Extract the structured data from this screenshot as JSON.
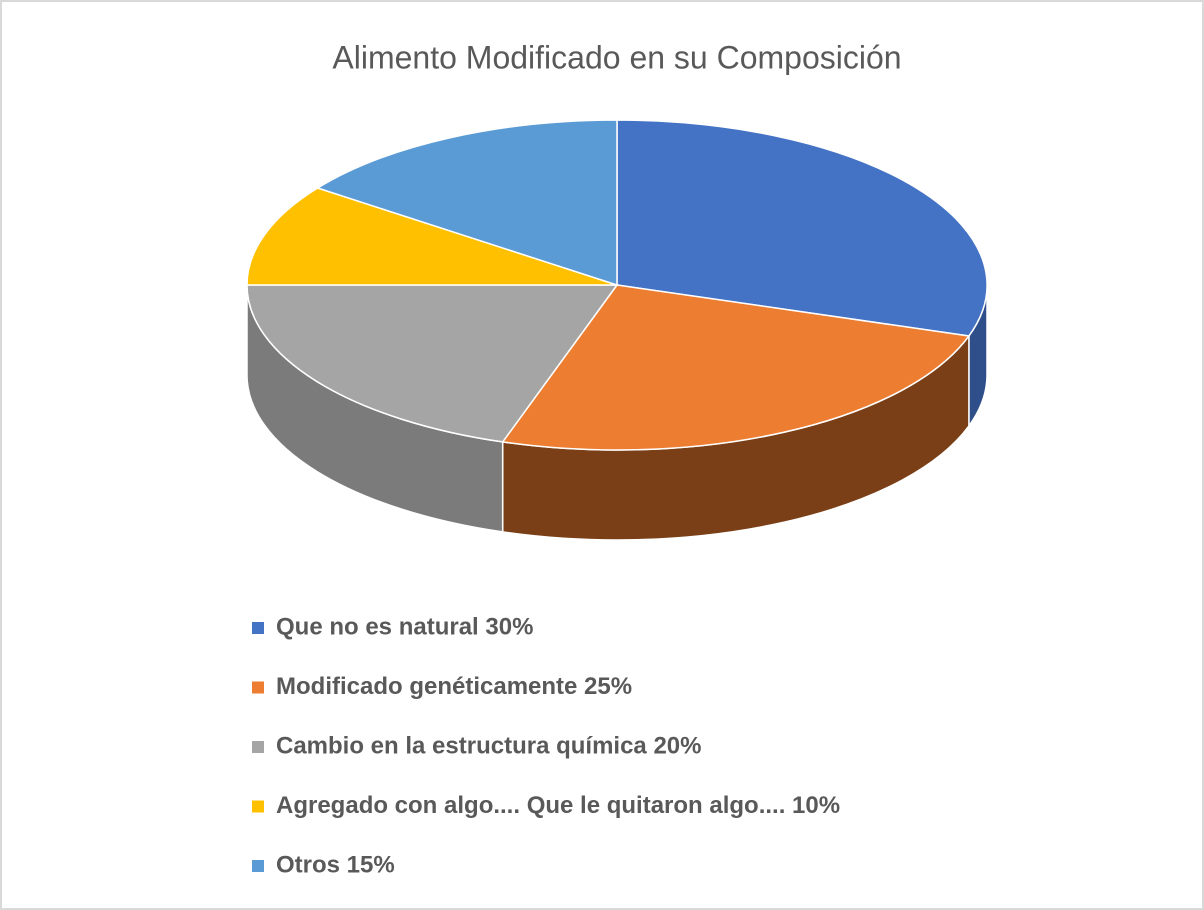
{
  "chart_data": {
    "type": "pie3d",
    "title": "Alimento Modificado en su Composición",
    "categories": [
      "Que no es natural 30%",
      "Modificado genéticamente 25%",
      "Cambio en la estructura química 20%",
      "Agregado con algo.... Que le quitaron algo.... 10%",
      "Otros 15%"
    ],
    "values": [
      30,
      25,
      20,
      10,
      15
    ],
    "colors": [
      "#4472c4",
      "#ed7d31",
      "#a5a5a5",
      "#ffc000",
      "#5b9bd5"
    ],
    "side_colors": [
      "#2f4f8a",
      "#7a3f16",
      "#7b7b7b",
      "#b38600",
      "#3f6c95"
    ],
    "legend": "bottom"
  }
}
